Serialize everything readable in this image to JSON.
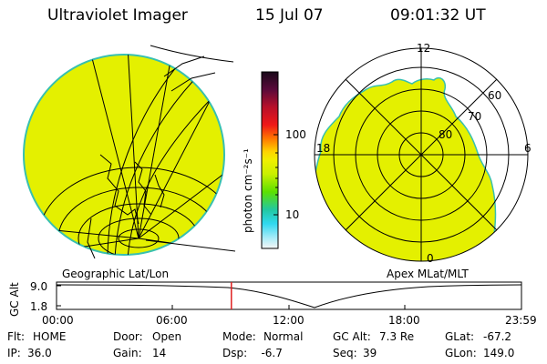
{
  "header": {
    "instrument": "Ultraviolet Imager",
    "date": "15 Jul 07",
    "time": "09:01:32 UT"
  },
  "colorbar": {
    "unit": "photon cm⁻²s⁻¹",
    "ticks": [
      "100",
      "10"
    ],
    "colors": [
      "#1a0a1a",
      "#5a0a3a",
      "#b8102a",
      "#f01818",
      "#ff7a00",
      "#ffd200",
      "#f0f000",
      "#c8f000",
      "#5ce000",
      "#22c8a0",
      "#30d8f0",
      "#a8ecf8",
      "#f6f6f6"
    ]
  },
  "left_panel": {
    "label": "Geographic Lat/Lon",
    "fill_color": "#e4f000"
  },
  "right_panel": {
    "label": "Apex MLat/MLT",
    "mlt_labels": {
      "top": "12",
      "left": "18",
      "right": "6",
      "bottom": "0"
    },
    "lat_labels": [
      "60",
      "70",
      "80"
    ]
  },
  "altitude_plot": {
    "axis_label": "GC Alt",
    "y_ticks": [
      "9.0",
      "1.8"
    ],
    "x_ticks": [
      "00:00",
      "06:00",
      "12:00",
      "18:00",
      "23:59"
    ],
    "cursor_time": "09:01:32",
    "cursor_color": "#e02020"
  },
  "status": {
    "row1": [
      {
        "label": "Flt:",
        "value": "HOME"
      },
      {
        "label": "Door:",
        "value": "Open"
      },
      {
        "label": "Mode:",
        "value": "Normal"
      },
      {
        "label": "GC Alt:",
        "value": "7.3 Re"
      },
      {
        "label": "GLat:",
        "value": "-67.2"
      }
    ],
    "row2": [
      {
        "label": "IP:",
        "value": "36.0"
      },
      {
        "label": "Gain:",
        "value": "14"
      },
      {
        "label": "Dsp:",
        "value": "   -6.7"
      },
      {
        "label": "Seq:",
        "value": "39"
      },
      {
        "label": "GLon:",
        "value": "149.0"
      }
    ]
  }
}
